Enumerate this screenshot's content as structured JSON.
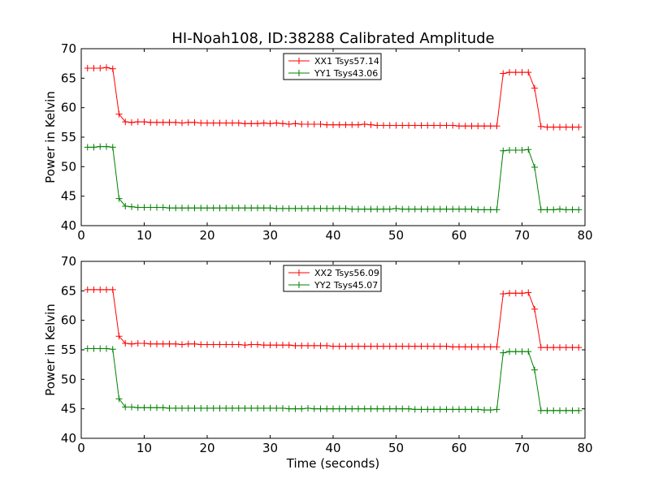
{
  "figure": {
    "title": "HI-Noah108, ID:38288 Calibrated Amplitude",
    "xlabel": "Time (seconds)"
  },
  "chart_data": [
    {
      "type": "line",
      "ylabel": "Power in Kelvin",
      "xlim": [
        0,
        80
      ],
      "ylim": [
        40,
        70
      ],
      "xticks": [
        "0",
        "10",
        "20",
        "30",
        "40",
        "50",
        "60",
        "70",
        "80"
      ],
      "yticks": [
        "40",
        "45",
        "50",
        "55",
        "60",
        "65",
        "70"
      ],
      "grid": false,
      "legend_position": "top-center",
      "series": [
        {
          "name": "XX1 Tsys57.14",
          "color": "#ff0000",
          "x": [
            1,
            2,
            3,
            4,
            5,
            6,
            7,
            8,
            9,
            10,
            11,
            12,
            13,
            14,
            15,
            16,
            17,
            18,
            19,
            20,
            21,
            22,
            23,
            24,
            25,
            26,
            27,
            28,
            29,
            30,
            31,
            32,
            33,
            34,
            35,
            36,
            37,
            38,
            39,
            40,
            41,
            42,
            43,
            44,
            45,
            46,
            47,
            48,
            49,
            50,
            51,
            52,
            53,
            54,
            55,
            56,
            57,
            58,
            59,
            60,
            61,
            62,
            63,
            64,
            65,
            66,
            67,
            68,
            69,
            70,
            71,
            72,
            73,
            74,
            75,
            76,
            77,
            78,
            79
          ],
          "y": [
            66.7,
            66.7,
            66.7,
            66.8,
            66.6,
            58.9,
            57.6,
            57.5,
            57.6,
            57.6,
            57.5,
            57.5,
            57.5,
            57.5,
            57.5,
            57.4,
            57.5,
            57.5,
            57.4,
            57.4,
            57.4,
            57.4,
            57.4,
            57.4,
            57.4,
            57.3,
            57.3,
            57.3,
            57.4,
            57.3,
            57.4,
            57.3,
            57.2,
            57.3,
            57.2,
            57.2,
            57.2,
            57.2,
            57.1,
            57.1,
            57.1,
            57.1,
            57.1,
            57.1,
            57.2,
            57.1,
            57.0,
            57.0,
            57.0,
            57.0,
            57.0,
            57.0,
            57.0,
            57.0,
            57.0,
            57.0,
            57.0,
            57.0,
            57.0,
            56.9,
            56.9,
            56.9,
            56.9,
            56.9,
            56.9,
            56.9,
            65.8,
            66.0,
            66.0,
            66.0,
            66.0,
            63.3,
            56.8,
            56.7,
            56.7,
            56.7,
            56.7,
            56.7,
            56.7
          ]
        },
        {
          "name": "YY1 Tsys43.06",
          "color": "#008000",
          "x": [
            1,
            2,
            3,
            4,
            5,
            6,
            7,
            8,
            9,
            10,
            11,
            12,
            13,
            14,
            15,
            16,
            17,
            18,
            19,
            20,
            21,
            22,
            23,
            24,
            25,
            26,
            27,
            28,
            29,
            30,
            31,
            32,
            33,
            34,
            35,
            36,
            37,
            38,
            39,
            40,
            41,
            42,
            43,
            44,
            45,
            46,
            47,
            48,
            49,
            50,
            51,
            52,
            53,
            54,
            55,
            56,
            57,
            58,
            59,
            60,
            61,
            62,
            63,
            64,
            65,
            66,
            67,
            68,
            69,
            70,
            71,
            72,
            73,
            74,
            75,
            76,
            77,
            78,
            79
          ],
          "y": [
            53.3,
            53.3,
            53.4,
            53.4,
            53.3,
            44.6,
            43.3,
            43.2,
            43.1,
            43.1,
            43.1,
            43.1,
            43.1,
            43.0,
            43.0,
            43.0,
            43.0,
            43.0,
            43.0,
            43.0,
            43.0,
            43.0,
            43.0,
            43.0,
            43.0,
            43.0,
            43.0,
            43.0,
            43.0,
            43.0,
            42.9,
            42.9,
            42.9,
            42.9,
            42.9,
            42.9,
            42.9,
            42.9,
            42.9,
            42.9,
            42.9,
            42.9,
            42.8,
            42.8,
            42.8,
            42.8,
            42.8,
            42.8,
            42.8,
            42.9,
            42.8,
            42.8,
            42.8,
            42.8,
            42.8,
            42.8,
            42.8,
            42.8,
            42.8,
            42.8,
            42.8,
            42.8,
            42.7,
            42.7,
            42.7,
            42.7,
            52.7,
            52.8,
            52.8,
            52.8,
            52.9,
            49.9,
            42.7,
            42.7,
            42.7,
            42.8,
            42.7,
            42.7,
            42.7
          ]
        }
      ]
    },
    {
      "type": "line",
      "ylabel": "Power in Kelvin",
      "xlim": [
        0,
        80
      ],
      "ylim": [
        40,
        70
      ],
      "xticks": [
        "0",
        "10",
        "20",
        "30",
        "40",
        "50",
        "60",
        "70",
        "80"
      ],
      "yticks": [
        "40",
        "45",
        "50",
        "55",
        "60",
        "65",
        "70"
      ],
      "grid": false,
      "legend_position": "top-center",
      "series": [
        {
          "name": "XX2 Tsys56.09",
          "color": "#ff0000",
          "x": [
            1,
            2,
            3,
            4,
            5,
            6,
            7,
            8,
            9,
            10,
            11,
            12,
            13,
            14,
            15,
            16,
            17,
            18,
            19,
            20,
            21,
            22,
            23,
            24,
            25,
            26,
            27,
            28,
            29,
            30,
            31,
            32,
            33,
            34,
            35,
            36,
            37,
            38,
            39,
            40,
            41,
            42,
            43,
            44,
            45,
            46,
            47,
            48,
            49,
            50,
            51,
            52,
            53,
            54,
            55,
            56,
            57,
            58,
            59,
            60,
            61,
            62,
            63,
            64,
            65,
            66,
            67,
            68,
            69,
            70,
            71,
            72,
            73,
            74,
            75,
            76,
            77,
            78,
            79
          ],
          "y": [
            65.2,
            65.2,
            65.2,
            65.2,
            65.2,
            57.3,
            56.1,
            56.0,
            56.1,
            56.1,
            56.0,
            56.0,
            56.0,
            56.0,
            56.0,
            55.9,
            56.0,
            56.0,
            55.9,
            55.9,
            55.9,
            55.9,
            55.9,
            55.9,
            55.9,
            55.8,
            55.9,
            55.9,
            55.8,
            55.8,
            55.8,
            55.8,
            55.8,
            55.7,
            55.7,
            55.7,
            55.7,
            55.7,
            55.7,
            55.6,
            55.6,
            55.6,
            55.6,
            55.6,
            55.6,
            55.6,
            55.6,
            55.6,
            55.6,
            55.6,
            55.6,
            55.6,
            55.6,
            55.6,
            55.6,
            55.6,
            55.6,
            55.6,
            55.5,
            55.5,
            55.5,
            55.5,
            55.5,
            55.5,
            55.5,
            55.5,
            64.5,
            64.6,
            64.6,
            64.6,
            64.7,
            61.9,
            55.4,
            55.4,
            55.4,
            55.4,
            55.4,
            55.4,
            55.4
          ]
        },
        {
          "name": "YY2 Tsys45.07",
          "color": "#008000",
          "x": [
            1,
            2,
            3,
            4,
            5,
            6,
            7,
            8,
            9,
            10,
            11,
            12,
            13,
            14,
            15,
            16,
            17,
            18,
            19,
            20,
            21,
            22,
            23,
            24,
            25,
            26,
            27,
            28,
            29,
            30,
            31,
            32,
            33,
            34,
            35,
            36,
            37,
            38,
            39,
            40,
            41,
            42,
            43,
            44,
            45,
            46,
            47,
            48,
            49,
            50,
            51,
            52,
            53,
            54,
            55,
            56,
            57,
            58,
            59,
            60,
            61,
            62,
            63,
            64,
            65,
            66,
            67,
            68,
            69,
            70,
            71,
            72,
            73,
            74,
            75,
            76,
            77,
            78,
            79
          ],
          "y": [
            55.2,
            55.2,
            55.2,
            55.2,
            55.1,
            46.7,
            45.3,
            45.3,
            45.2,
            45.2,
            45.2,
            45.2,
            45.2,
            45.1,
            45.1,
            45.1,
            45.1,
            45.1,
            45.1,
            45.1,
            45.1,
            45.1,
            45.1,
            45.1,
            45.1,
            45.1,
            45.1,
            45.1,
            45.1,
            45.1,
            45.1,
            45.1,
            45.0,
            45.0,
            45.0,
            45.1,
            45.0,
            45.0,
            45.0,
            45.0,
            45.0,
            45.0,
            45.0,
            45.0,
            45.0,
            45.0,
            45.0,
            45.0,
            45.0,
            45.0,
            45.0,
            45.0,
            44.9,
            44.9,
            44.9,
            44.9,
            44.9,
            44.9,
            44.9,
            44.9,
            44.9,
            44.9,
            44.9,
            44.8,
            44.8,
            44.9,
            54.5,
            54.7,
            54.7,
            54.7,
            54.7,
            51.6,
            44.7,
            44.7,
            44.7,
            44.7,
            44.7,
            44.7,
            44.7
          ]
        }
      ]
    }
  ]
}
